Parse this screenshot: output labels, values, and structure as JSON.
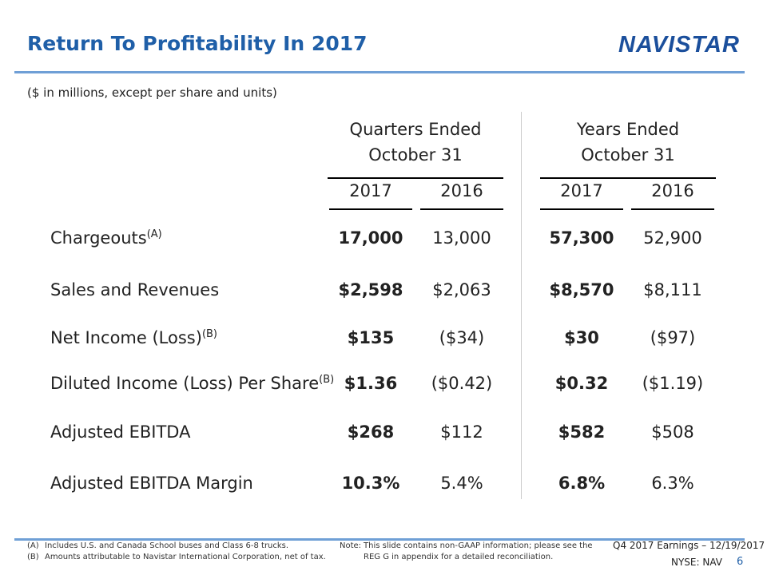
{
  "header": {
    "title": "Return To Profitability In 2017",
    "logo": "NAVISTAR",
    "subtitle": "($ in millions, except per share and units)"
  },
  "table": {
    "groups": [
      {
        "line1": "Quarters Ended",
        "line2": "October 31"
      },
      {
        "line1": "Years Ended",
        "line2": "October 31"
      }
    ],
    "years": [
      "2017",
      "2016",
      "2017",
      "2016"
    ],
    "rows": [
      {
        "label": "Chargeouts",
        "note": "(A)",
        "values": [
          "17,000",
          "13,000",
          "57,300",
          "52,900"
        ]
      },
      {
        "label": "Sales and Revenues",
        "note": "",
        "values": [
          "$2,598",
          "$2,063",
          "$8,570",
          "$8,111"
        ]
      },
      {
        "label": "Net Income (Loss)",
        "note": "(B)",
        "values": [
          "$135",
          "($34)",
          "$30",
          "($97)"
        ]
      },
      {
        "label": "Diluted Income (Loss) Per Share",
        "note": "(B)",
        "values": [
          "$1.36",
          "($0.42)",
          "$0.32",
          "($1.19)"
        ]
      },
      {
        "label": "Adjusted EBITDA",
        "note": "",
        "values": [
          "$268",
          "$112",
          "$582",
          "$508"
        ]
      },
      {
        "label": "Adjusted EBITDA Margin",
        "note": "",
        "values": [
          "10.3%",
          "5.4%",
          "6.8%",
          "6.3%"
        ]
      }
    ]
  },
  "footer": {
    "notes": [
      {
        "key": "(A)",
        "text": "Includes U.S. and Canada School buses and Class 6-8 trucks."
      },
      {
        "key": "(B)",
        "text": "Amounts attributable to Navistar International Corporation, net of tax."
      }
    ],
    "note_label": "Note:",
    "note_line1": "This slide contains non-GAAP information; please see the",
    "note_line2": "REG G in appendix for a detailed reconciliation.",
    "event": "Q4 2017 Earnings – 12/19/2017",
    "ticker": "NYSE: NAV",
    "page": "6"
  },
  "colors": {
    "accent": "#1f5fa8",
    "rule": "#6f9fd6"
  }
}
